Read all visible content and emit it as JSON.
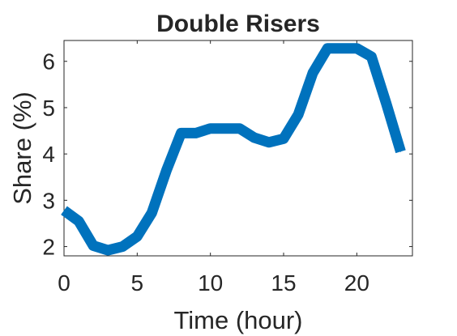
{
  "chart_data": {
    "type": "line",
    "title": "Double Risers",
    "xlabel": "Time (hour)",
    "ylabel": "Share (%)",
    "xlim": [
      0,
      23.8
    ],
    "ylim": [
      1.8,
      6.45
    ],
    "xticks": [
      0,
      5,
      10,
      15,
      20
    ],
    "yticks": [
      2,
      3,
      4,
      5,
      6
    ],
    "xtick_labels": [
      "0",
      "5",
      "10",
      "15",
      "20"
    ],
    "ytick_labels": [
      "2",
      "3",
      "4",
      "5",
      "6"
    ],
    "grid": false,
    "legend": "none",
    "series": [
      {
        "color": "#0072BD",
        "x": [
          0,
          1,
          2,
          3,
          4,
          5,
          6,
          7,
          8,
          9,
          10,
          11,
          12,
          13,
          14,
          15,
          16,
          17,
          18,
          19,
          20,
          21,
          22,
          23
        ],
        "y": [
          2.78,
          2.55,
          2.02,
          1.92,
          2.0,
          2.22,
          2.73,
          3.65,
          4.45,
          4.45,
          4.55,
          4.55,
          4.55,
          4.35,
          4.25,
          4.33,
          4.85,
          5.75,
          6.28,
          6.28,
          6.28,
          6.1,
          5.1,
          4.05
        ]
      }
    ]
  }
}
